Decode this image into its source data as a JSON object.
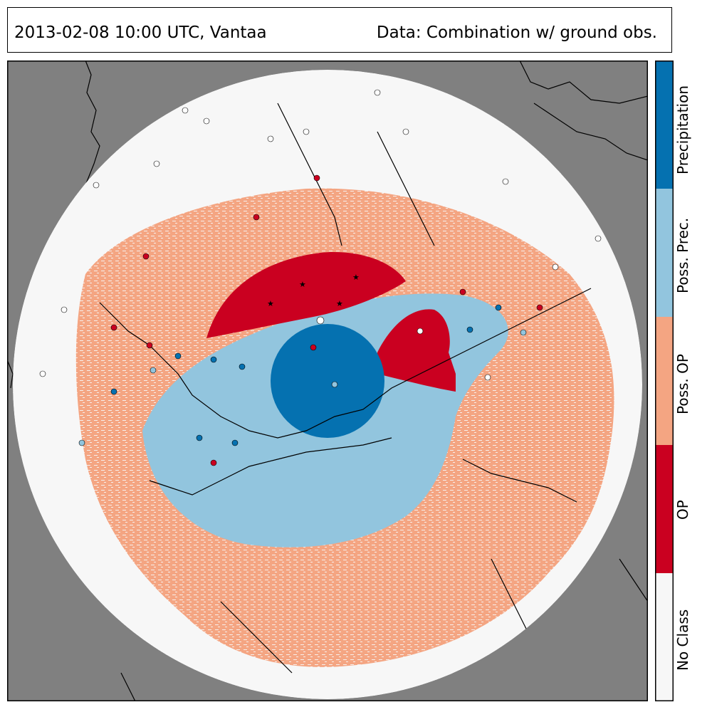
{
  "header": {
    "left_text": "2013-02-08 10:00 UTC, Vantaa",
    "right_text": "Data: Combination w/ ground obs."
  },
  "colors": {
    "background": "#808080",
    "no_class": "#f7f7f7",
    "op": "#ca0020",
    "poss_op": "#f4a582",
    "poss_prec": "#92c5de",
    "precipitation": "#0571b0",
    "coastline": "#000000"
  },
  "legend": {
    "classes": [
      {
        "name": "No Class",
        "color": "#f7f7f7"
      },
      {
        "name": "OP",
        "color": "#ca0020"
      },
      {
        "name": "Poss. OP",
        "color": "#f4a582"
      },
      {
        "name": "Poss. Prec.",
        "color": "#92c5de"
      },
      {
        "name": "Precipitation",
        "color": "#0571b0"
      }
    ]
  },
  "map": {
    "radar_site": "Vantaa",
    "observation_marker_legend": [
      "circle = ground observation",
      "star = ground observation (other type)"
    ]
  }
}
